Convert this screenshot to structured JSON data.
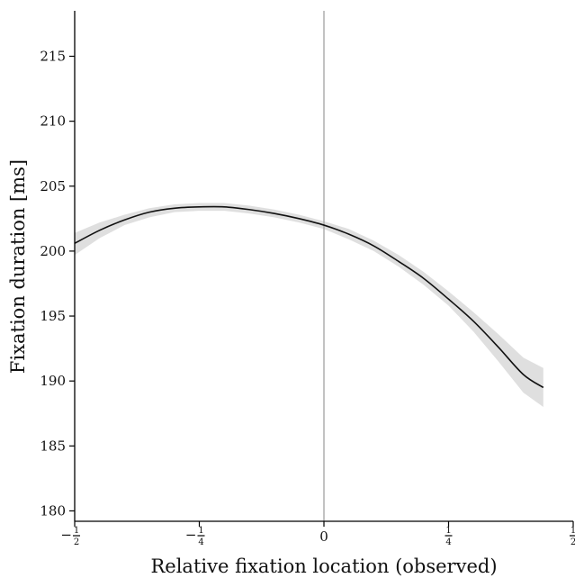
{
  "chart_data": {
    "type": "line",
    "title": "",
    "xlabel": "Relative fixation location (observed)",
    "ylabel": "Fixation duration [ms]",
    "xlim": [
      -0.5,
      0.5
    ],
    "ylim": [
      179.2,
      218.5
    ],
    "x_ticks": [
      {
        "value": -0.5,
        "sign": "−",
        "num": "1",
        "den": "2"
      },
      {
        "value": -0.25,
        "sign": "−",
        "num": "1",
        "den": "4"
      },
      {
        "value": 0,
        "sign": "",
        "num": "",
        "den": "",
        "text": "0"
      },
      {
        "value": 0.25,
        "sign": "",
        "num": "1",
        "den": "4"
      },
      {
        "value": 0.5,
        "sign": "",
        "num": "1",
        "den": "2"
      }
    ],
    "y_ticks": [
      180,
      185,
      190,
      195,
      200,
      205,
      210,
      215
    ],
    "vertical_reference_x": 0,
    "grid": false,
    "series": [
      {
        "x": [
          -0.5,
          -0.45,
          -0.4,
          -0.35,
          -0.3,
          -0.25,
          -0.2,
          -0.15,
          -0.1,
          -0.05,
          0,
          0.05,
          0.1,
          0.15,
          0.2,
          0.25,
          0.3,
          0.35,
          0.4,
          0.44
        ],
        "y": [
          200.6,
          201.6,
          202.4,
          203.0,
          203.3,
          203.4,
          203.4,
          203.2,
          202.9,
          202.5,
          202.0,
          201.3,
          200.4,
          199.2,
          197.9,
          196.3,
          194.6,
          192.6,
          190.5,
          189.5
        ],
        "lower": [
          199.7,
          201.0,
          202.0,
          202.6,
          203.0,
          203.1,
          203.1,
          202.9,
          202.6,
          202.2,
          201.7,
          200.9,
          200.0,
          198.8,
          197.4,
          195.8,
          193.8,
          191.5,
          189.1,
          188.0
        ],
        "upper": [
          201.4,
          202.2,
          202.8,
          203.3,
          203.6,
          203.7,
          203.7,
          203.5,
          203.2,
          202.8,
          202.3,
          201.7,
          200.8,
          199.7,
          198.4,
          196.9,
          195.3,
          193.6,
          191.8,
          191.0
        ],
        "color": "#111111",
        "band_color": "#d9d9d9"
      }
    ]
  }
}
